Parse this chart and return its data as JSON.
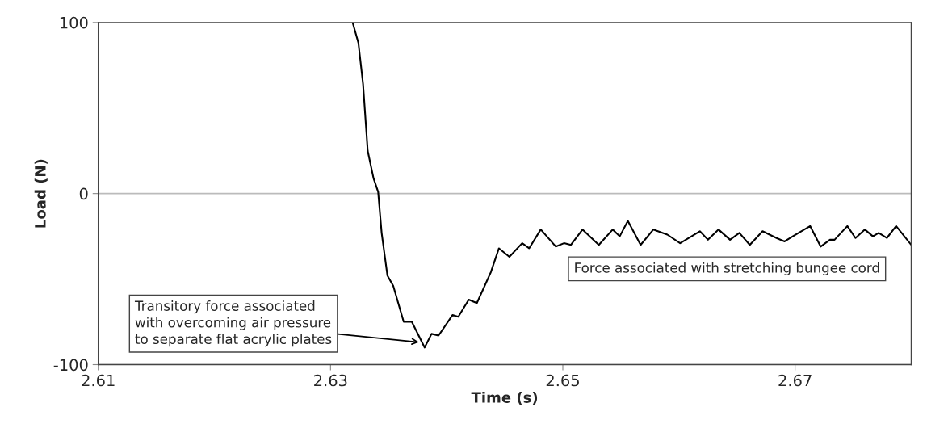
{
  "chart_data": {
    "type": "line",
    "xlabel": "Time (s)",
    "ylabel": "Load (N)",
    "xlim": [
      2.61,
      2.68
    ],
    "xticks": [
      2.61,
      2.63,
      2.65,
      2.67
    ],
    "ylim": [
      -100,
      100
    ],
    "yticks": [
      -100,
      0,
      100
    ],
    "grid": "y",
    "legend": false,
    "series": [
      {
        "color": "#000000",
        "x": [
          2.6319,
          2.6324,
          2.6328,
          2.6332,
          2.6337,
          2.6341,
          2.6344,
          2.6349,
          2.6354,
          2.6363,
          2.637,
          2.6381,
          2.6387,
          2.6393,
          2.6405,
          2.641,
          2.6419,
          2.6426,
          2.6438,
          2.6445,
          2.6454,
          2.6465,
          2.6471,
          2.6481,
          2.6494,
          2.6501,
          2.6507,
          2.6517,
          2.6531,
          2.6543,
          2.6549,
          2.6556,
          2.6567,
          2.6578,
          2.659,
          2.6601,
          2.6618,
          2.6625,
          2.6634,
          2.6644,
          2.6652,
          2.6661,
          2.6672,
          2.6684,
          2.6691,
          2.6698,
          2.6713,
          2.6722,
          2.673,
          2.6734,
          2.6745,
          2.6752,
          2.676,
          2.6767,
          2.6772,
          2.6779,
          2.6787,
          2.68
        ],
        "values": [
          100,
          88,
          64,
          25,
          9,
          1,
          -23,
          -48,
          -54,
          -75,
          -75,
          -90,
          -82,
          -83,
          -71,
          -72,
          -62,
          -64,
          -46,
          -32,
          -37,
          -29,
          -32,
          -21,
          -31,
          -29,
          -30,
          -21,
          -30,
          -21,
          -25,
          -16,
          -30,
          -21,
          -24,
          -29,
          -22,
          -27,
          -21,
          -27,
          -23,
          -30,
          -22,
          -26,
          -28,
          -25,
          -19,
          -31,
          -27,
          -27,
          -19,
          -26,
          -21,
          -25,
          -23,
          -26,
          -19,
          -30
        ]
      }
    ],
    "annotations": [
      {
        "text": "Transitory force associated\nwith overcoming air pressure\nto separate flat acrylic plates",
        "x": 2.6378,
        "y": -87
      },
      "Force associated with stretching bungee cord"
    ]
  }
}
